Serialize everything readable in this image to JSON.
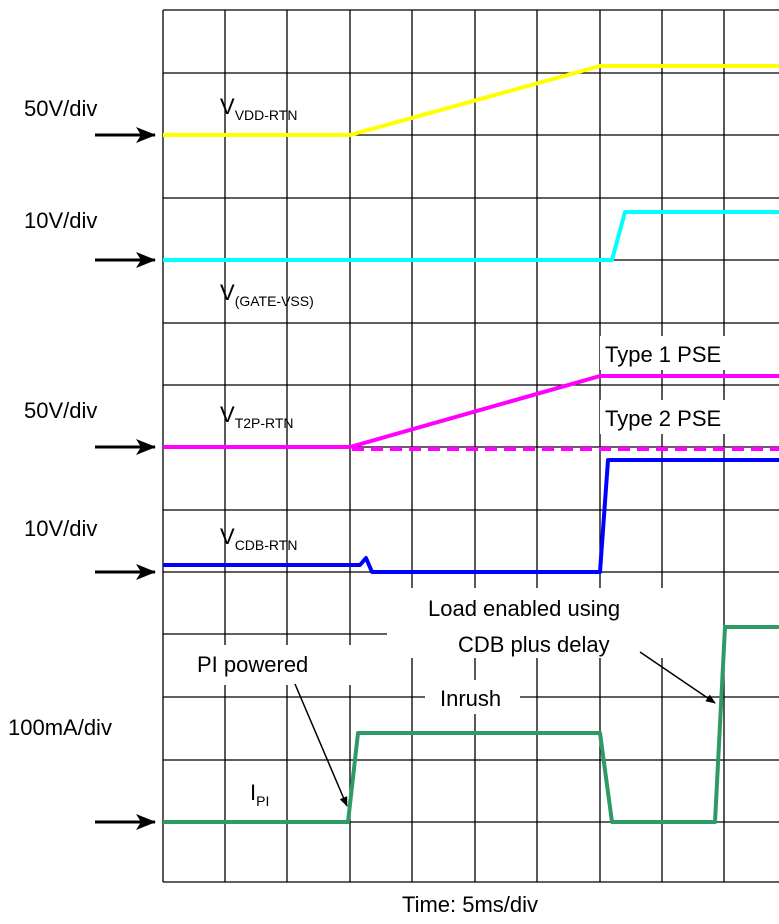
{
  "scales": [
    "50V/div",
    "10V/div",
    "50V/div",
    "10V/div",
    "100mA/div"
  ],
  "traces": [
    {
      "main": "V",
      "sub": "VDD-RTN"
    },
    {
      "main": "V",
      "sub": "(GATE-VSS)"
    },
    {
      "main": "V",
      "sub": "T2P-RTN"
    },
    {
      "main": "V",
      "sub": "CDB-RTN"
    },
    {
      "main": "I",
      "sub": "PI"
    }
  ],
  "annotations": [
    "Type 1 PSE",
    "Type 2 PSE",
    "Load enabled using",
    "CDB plus delay",
    "PI powered",
    "Inrush"
  ],
  "x_axis_label": "Time: 5ms/div"
}
